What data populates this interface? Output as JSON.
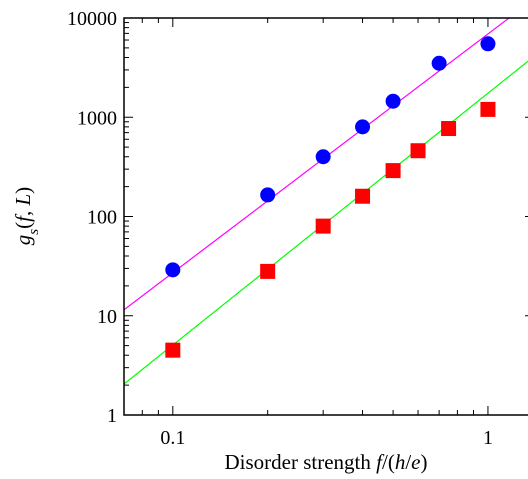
{
  "chart_data": {
    "type": "scatter",
    "title": "",
    "xlabel_parts": [
      "Disorder strength ",
      "f",
      "/(",
      "h",
      "/",
      "e",
      ")"
    ],
    "ylabel_parts": [
      "g",
      "s",
      "(",
      "f",
      ", ",
      "L",
      ")"
    ],
    "x_scale": "log",
    "y_scale": "log",
    "xlim": [
      0.07,
      1.4
    ],
    "ylim": [
      1,
      10000
    ],
    "x_ticks": [
      {
        "value": 0.1,
        "label": "0.1"
      },
      {
        "value": 1,
        "label": "1"
      }
    ],
    "y_ticks": [
      {
        "value": 1,
        "label": "1"
      },
      {
        "value": 10,
        "label": "10"
      },
      {
        "value": 100,
        "label": "100"
      },
      {
        "value": 1000,
        "label": "1000"
      },
      {
        "value": 10000,
        "label": "10000"
      }
    ],
    "grid": false,
    "legend": "none",
    "series": [
      {
        "marker": "circle",
        "color": "#0000ff",
        "x": [
          0.1,
          0.2,
          0.3,
          0.4,
          0.5,
          0.7,
          1.0
        ],
        "y": [
          29,
          165,
          400,
          800,
          1450,
          3500,
          5500
        ]
      },
      {
        "marker": "square",
        "color": "#ff0000",
        "x": [
          0.1,
          0.2,
          0.3,
          0.4,
          0.5,
          0.6,
          0.75,
          1.0
        ],
        "y": [
          4.5,
          28,
          80,
          160,
          290,
          460,
          770,
          1200
        ]
      }
    ],
    "fit_lines": [
      {
        "color": "#ff00ff",
        "x": [
          0.07,
          1.4
        ],
        "y": [
          11.5,
          15500
        ]
      },
      {
        "color": "#00ff00",
        "x": [
          0.07,
          1.4
        ],
        "y": [
          2.05,
          4100
        ]
      }
    ]
  }
}
